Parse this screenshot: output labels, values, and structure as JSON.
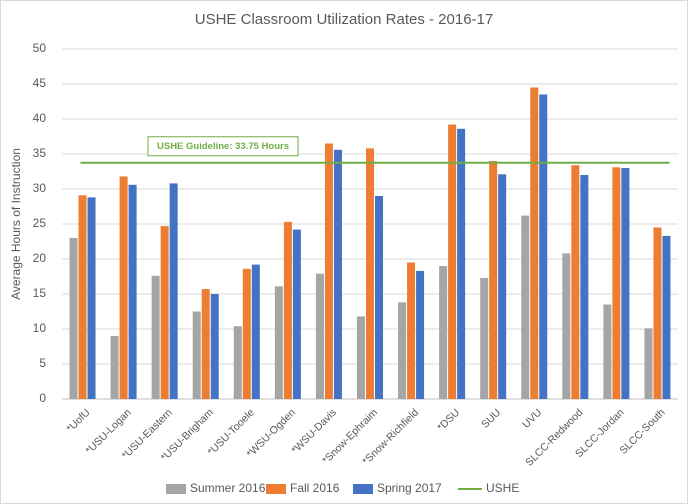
{
  "chart_data": {
    "type": "bar",
    "title": "USHE Classroom Utilization Rates - 2016-17",
    "y_label": "Average Hours of Instruction",
    "categories": [
      "*UofU",
      "*USU-Logan",
      "*USU-Eastern",
      "*USU-Brigham",
      "*USU-Tooele",
      "*WSU-Ogden",
      "*WSU-Davis",
      "*Snow-Ephraim",
      "*Snow-Richfield",
      "*DSU",
      "SUU",
      "UVU",
      "SLCC-Redwood",
      "SLCC-Jordan",
      "SLCC-South"
    ],
    "series": [
      {
        "name": "Summer 2016",
        "color": "#a5a5a5",
        "values": [
          23,
          9,
          17.6,
          12.5,
          10.4,
          16.1,
          17.9,
          11.8,
          13.8,
          19,
          17.3,
          26.2,
          20.8,
          13.5,
          10.1
        ]
      },
      {
        "name": "Fall 2016",
        "color": "#ed7d31",
        "values": [
          29.1,
          31.8,
          24.7,
          15.7,
          18.6,
          25.3,
          36.5,
          35.8,
          19.5,
          39.2,
          34,
          44.5,
          33.4,
          33.1,
          24.5
        ]
      },
      {
        "name": "Spring 2017",
        "color": "#4472c4",
        "values": [
          28.8,
          30.6,
          30.8,
          15,
          19.2,
          24.2,
          35.6,
          29,
          18.3,
          38.6,
          32.1,
          43.5,
          32,
          33,
          23.3
        ]
      }
    ],
    "reference_line": {
      "name": "USHE",
      "value": 33.75,
      "color": "#70ad47"
    },
    "annotation": "USHE Guideline: 33.75 Hours",
    "ylim": [
      0,
      50
    ],
    "yticks": [
      0,
      5,
      10,
      15,
      20,
      25,
      30,
      35,
      40,
      45,
      50
    ],
    "grid": true,
    "legend": "bottom"
  }
}
